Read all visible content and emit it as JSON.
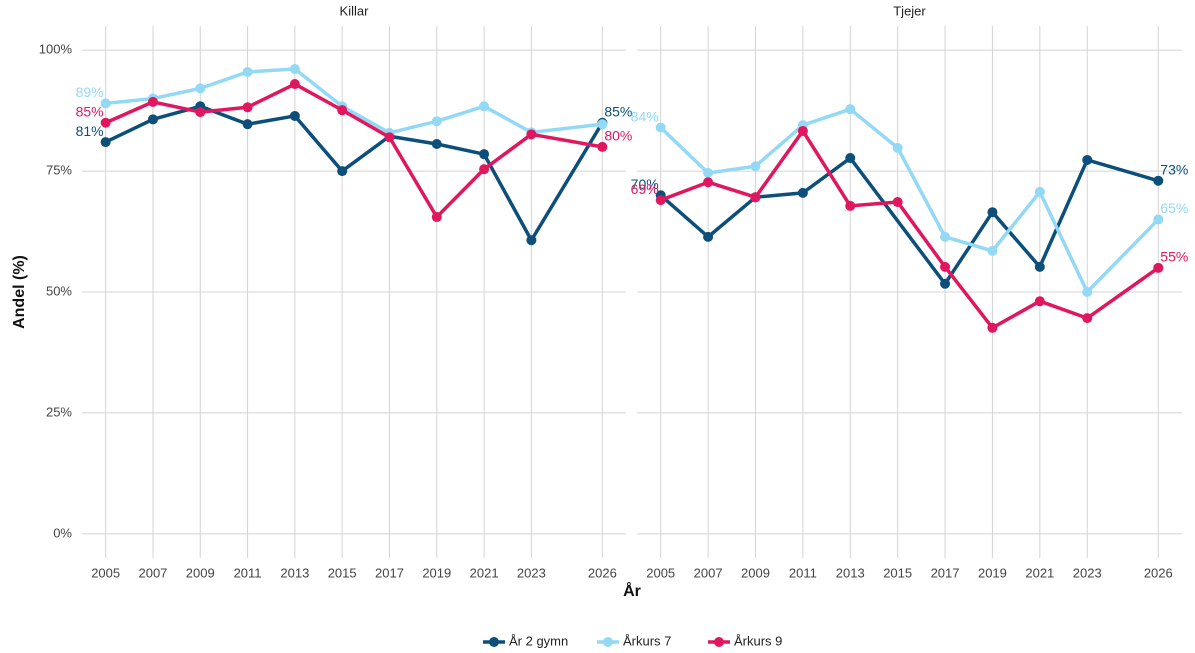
{
  "chart_data": [
    {
      "type": "line",
      "title": "Killar",
      "xlabel": "År",
      "ylabel": "Andel (%)",
      "x": [
        2005,
        2007,
        2009,
        2011,
        2013,
        2015,
        2017,
        2019,
        2021,
        2023,
        2026
      ],
      "xlim": [
        2004,
        2027
      ],
      "xticks": [
        2005,
        2007,
        2009,
        2011,
        2013,
        2015,
        2017,
        2019,
        2021,
        2023,
        2026
      ],
      "ylim": [
        -5,
        105
      ],
      "yticks": [
        {
          "value": 0,
          "label": "0%"
        },
        {
          "value": 25,
          "label": "25%"
        },
        {
          "value": 50,
          "label": "50%"
        },
        {
          "value": 75,
          "label": "75%"
        },
        {
          "value": 100,
          "label": "100%"
        }
      ],
      "grid": true,
      "series": [
        {
          "name": "År 2 gymn",
          "color": "#0b4f7a",
          "values": [
            81,
            85.7,
            88.4,
            84.7,
            86.4,
            75,
            82.2,
            80.6,
            78.5,
            60.7,
            85
          ],
          "value_labels": [
            "81%",
            null,
            null,
            null,
            null,
            null,
            null,
            null,
            null,
            null,
            "85%"
          ]
        },
        {
          "name": "Årkurs 7",
          "color": "#93d9f5",
          "values": [
            89,
            90,
            92.1,
            95.5,
            96.1,
            88.4,
            82.9,
            85.3,
            88.4,
            83,
            84.7
          ],
          "value_labels": [
            "89%",
            null,
            null,
            null,
            null,
            null,
            null,
            null,
            null,
            null,
            null
          ]
        },
        {
          "name": "Årkurs 9",
          "color": "#e0175f",
          "values": [
            85,
            89.3,
            87.2,
            88.2,
            93,
            87.6,
            82,
            65.5,
            75.4,
            82.6,
            80
          ],
          "value_labels": [
            "85%",
            null,
            null,
            null,
            null,
            null,
            null,
            null,
            null,
            null,
            "80%"
          ]
        }
      ]
    },
    {
      "type": "line",
      "title": "Tjejer",
      "x": [
        2005,
        2007,
        2009,
        2011,
        2013,
        2015,
        2017,
        2019,
        2021,
        2023,
        2026
      ],
      "xlim": [
        2004,
        2027
      ],
      "xticks": [
        2005,
        2007,
        2009,
        2011,
        2013,
        2015,
        2017,
        2019,
        2021,
        2023,
        2026
      ],
      "ylim": [
        -5,
        105
      ],
      "yticks": [
        {
          "value": 0,
          "label": "0%"
        },
        {
          "value": 25,
          "label": "25%"
        },
        {
          "value": 50,
          "label": "50%"
        },
        {
          "value": 75,
          "label": "75%"
        },
        {
          "value": 100,
          "label": "100%"
        }
      ],
      "grid": true,
      "series": [
        {
          "name": "År 2 gymn",
          "color": "#0b4f7a",
          "x": [
            2005,
            2007,
            2009,
            2011,
            2013,
            2017,
            2019,
            2021,
            2023,
            2026
          ],
          "values": [
            70,
            61.4,
            69.6,
            70.5,
            77.7,
            51.7,
            66.5,
            55.2,
            77.3,
            73
          ],
          "value_labels": [
            "70%",
            null,
            null,
            null,
            null,
            null,
            null,
            null,
            null,
            "73%"
          ]
        },
        {
          "name": "Årkurs 7",
          "color": "#93d9f5",
          "values": [
            84,
            74.6,
            76,
            84.5,
            87.8,
            79.8,
            61.4,
            58.5,
            70.7,
            50,
            65
          ],
          "value_labels": [
            "84%",
            null,
            null,
            null,
            null,
            null,
            null,
            null,
            null,
            null,
            "65%"
          ]
        },
        {
          "name": "Årkurs 9",
          "color": "#e0175f",
          "values": [
            69,
            72.7,
            69.6,
            83.3,
            67.8,
            68.6,
            55.2,
            42.6,
            48.1,
            44.6,
            55
          ],
          "value_labels": [
            "69%",
            null,
            null,
            null,
            null,
            null,
            null,
            null,
            null,
            null,
            "55%"
          ]
        }
      ]
    }
  ]
}
